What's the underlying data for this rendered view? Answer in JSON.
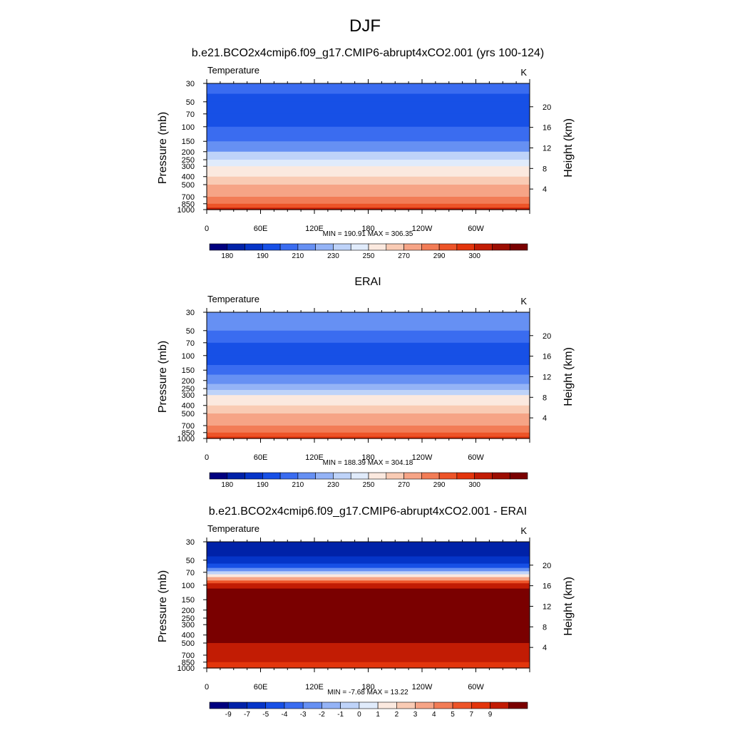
{
  "figure": {
    "title": "DJF"
  },
  "chart_data": [
    {
      "type": "heatmap",
      "title": "b.e21.BCO2x4cmip6.f09_g17.CMIP6-abrupt4xCO2.001 (yrs 100-124)",
      "left_label": "Temperature",
      "units": "K",
      "ylabel": "Pressure (mb)",
      "ylabel_right": "Height (km)",
      "x_ticks": [
        "0",
        "60E",
        "120E",
        "180",
        "120W",
        "60W"
      ],
      "y_ticks": [
        "30",
        "50",
        "70",
        "100",
        "150",
        "200",
        "250",
        "300",
        "400",
        "500",
        "700",
        "850",
        "1000"
      ],
      "y_ticks_right": [
        "20",
        "16",
        "12",
        "8",
        "4"
      ],
      "stats": "MIN = 190.91  MAX = 306.35",
      "colorbar": {
        "labels": [
          "180",
          "190",
          "210",
          "230",
          "250",
          "270",
          "290",
          "300"
        ],
        "colors": [
          "#00007f",
          "#0022a8",
          "#0535c8",
          "#1750e6",
          "#3a6cf0",
          "#6690f3",
          "#94b3f6",
          "#bed3f9",
          "#e0ebfb",
          "#fbe9df",
          "#f9cbb4",
          "#f6a486",
          "#f27c56",
          "#ed5428",
          "#e3350c",
          "#c21c04",
          "#9c0d01",
          "#7a0000"
        ]
      },
      "bands": [
        {
          "p": 30,
          "c": "#3a6cf0"
        },
        {
          "p": 40,
          "c": "#1750e6"
        },
        {
          "p": 50,
          "c": "#1750e6"
        },
        {
          "p": 70,
          "c": "#1750e6"
        },
        {
          "p": 100,
          "c": "#3a6cf0"
        },
        {
          "p": 150,
          "c": "#6690f3"
        },
        {
          "p": 200,
          "c": "#bed3f9"
        },
        {
          "p": 250,
          "c": "#e0ebfb"
        },
        {
          "p": 300,
          "c": "#fbe9df"
        },
        {
          "p": 400,
          "c": "#f9cbb4"
        },
        {
          "p": 500,
          "c": "#f6a486"
        },
        {
          "p": 700,
          "c": "#f27c56"
        },
        {
          "p": 850,
          "c": "#ed5428"
        },
        {
          "p": 950,
          "c": "#c21c04"
        },
        {
          "p": 1000,
          "c": "#9c0d01"
        }
      ]
    },
    {
      "type": "heatmap",
      "title": "ERAI",
      "left_label": "Temperature",
      "units": "K",
      "ylabel": "Pressure (mb)",
      "ylabel_right": "Height (km)",
      "x_ticks": [
        "0",
        "60E",
        "120E",
        "180",
        "120W",
        "60W"
      ],
      "y_ticks": [
        "30",
        "50",
        "70",
        "100",
        "150",
        "200",
        "250",
        "300",
        "400",
        "500",
        "700",
        "850",
        "1000"
      ],
      "y_ticks_right": [
        "20",
        "16",
        "12",
        "8",
        "4"
      ],
      "stats": "MIN = 188.39  MAX = 304.18",
      "colorbar": {
        "labels": [
          "180",
          "190",
          "210",
          "230",
          "250",
          "270",
          "290",
          "300"
        ],
        "colors": [
          "#00007f",
          "#0022a8",
          "#0535c8",
          "#1750e6",
          "#3a6cf0",
          "#6690f3",
          "#94b3f6",
          "#bed3f9",
          "#e0ebfb",
          "#fbe9df",
          "#f9cbb4",
          "#f6a486",
          "#f27c56",
          "#ed5428",
          "#e3350c",
          "#c21c04",
          "#9c0d01",
          "#7a0000"
        ]
      },
      "bands": [
        {
          "p": 30,
          "c": "#6690f3"
        },
        {
          "p": 50,
          "c": "#3a6cf0"
        },
        {
          "p": 70,
          "c": "#1750e6"
        },
        {
          "p": 100,
          "c": "#1750e6"
        },
        {
          "p": 130,
          "c": "#3a6cf0"
        },
        {
          "p": 170,
          "c": "#6690f3"
        },
        {
          "p": 220,
          "c": "#94b3f6"
        },
        {
          "p": 260,
          "c": "#bed3f9"
        },
        {
          "p": 300,
          "c": "#fbe9df"
        },
        {
          "p": 400,
          "c": "#f9cbb4"
        },
        {
          "p": 500,
          "c": "#f6a486"
        },
        {
          "p": 700,
          "c": "#f27c56"
        },
        {
          "p": 850,
          "c": "#ed5428"
        },
        {
          "p": 950,
          "c": "#e3350c"
        },
        {
          "p": 1000,
          "c": "#c21c04"
        }
      ]
    },
    {
      "type": "heatmap",
      "title": "b.e21.BCO2x4cmip6.f09_g17.CMIP6-abrupt4xCO2.001 - ERAI",
      "left_label": "Temperature",
      "units": "K",
      "ylabel": "Pressure (mb)",
      "ylabel_right": "Height (km)",
      "x_ticks": [
        "0",
        "60E",
        "120E",
        "180",
        "120W",
        "60W"
      ],
      "y_ticks": [
        "30",
        "50",
        "70",
        "100",
        "150",
        "200",
        "250",
        "300",
        "400",
        "500",
        "700",
        "850",
        "1000"
      ],
      "y_ticks_right": [
        "20",
        "16",
        "12",
        "8",
        "4"
      ],
      "stats": "MIN = -7.68  MAX = 13.22",
      "colorbar": {
        "labels": [
          "-9",
          "-7",
          "-5",
          "-4",
          "-3",
          "-2",
          "-1",
          "0",
          "1",
          "2",
          "3",
          "4",
          "5",
          "7",
          "9"
        ],
        "colors": [
          "#00007f",
          "#0022a8",
          "#0535c8",
          "#1750e6",
          "#3a6cf0",
          "#6690f3",
          "#94b3f6",
          "#bed3f9",
          "#e0ebfb",
          "#fbe9df",
          "#f9cbb4",
          "#f6a486",
          "#f27c56",
          "#ed5428",
          "#e3350c",
          "#c21c04",
          "#7a0000"
        ]
      },
      "bands": [
        {
          "p": 30,
          "c": "#0022a8"
        },
        {
          "p": 45,
          "c": "#0535c8"
        },
        {
          "p": 55,
          "c": "#1750e6"
        },
        {
          "p": 62,
          "c": "#6690f3"
        },
        {
          "p": 68,
          "c": "#bed3f9"
        },
        {
          "p": 74,
          "c": "#fbe9df"
        },
        {
          "p": 80,
          "c": "#f6a486"
        },
        {
          "p": 88,
          "c": "#ed5428"
        },
        {
          "p": 95,
          "c": "#c21c04"
        },
        {
          "p": 110,
          "c": "#7a0000"
        },
        {
          "p": 400,
          "c": "#7a0000"
        },
        {
          "p": 500,
          "c": "#c21c04"
        },
        {
          "p": 750,
          "c": "#c21c04"
        },
        {
          "p": 850,
          "c": "#e3350c"
        },
        {
          "p": 1000,
          "c": "#e3350c"
        }
      ]
    }
  ]
}
